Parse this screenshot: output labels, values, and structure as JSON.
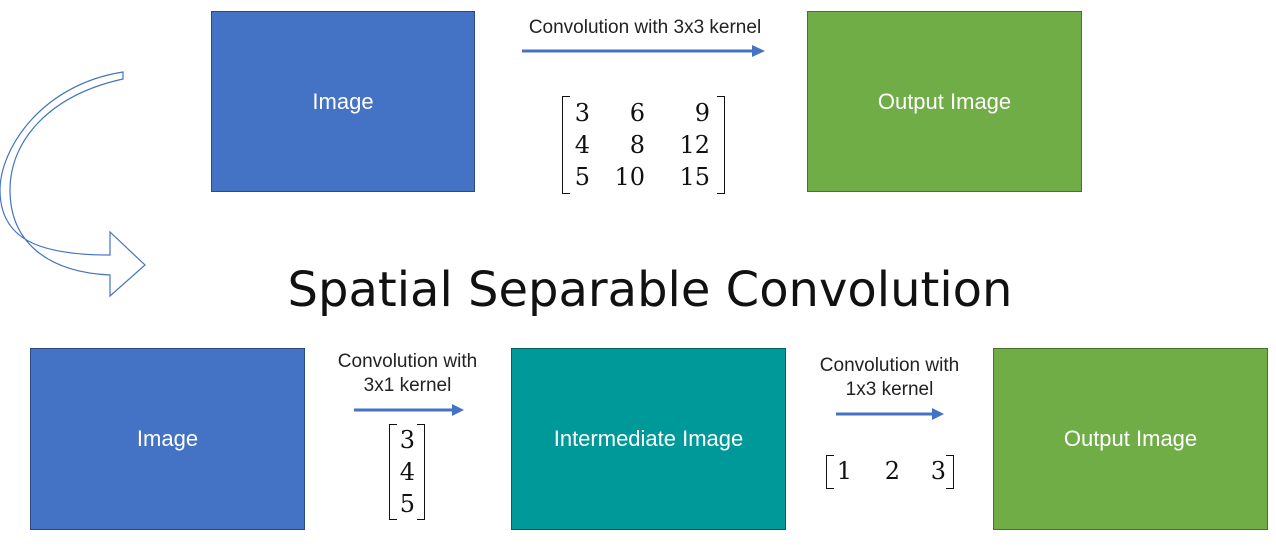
{
  "title": "Spatial Separable Convolution",
  "top": {
    "input_label": "Image",
    "op_label": "Convolution with 3x3 kernel",
    "kernel": [
      [
        "3",
        "6",
        "9"
      ],
      [
        "4",
        "8",
        "12"
      ],
      [
        "5",
        "10",
        "15"
      ]
    ],
    "output_label": "Output Image"
  },
  "bottom": {
    "input_label": "Image",
    "op1_label_line1": "Convolution with",
    "op1_label_line2": "3x1 kernel",
    "kernel_col": [
      "3",
      "4",
      "5"
    ],
    "intermediate_label": "Intermediate Image",
    "op2_label_line1": "Convolution with",
    "op2_label_line2": "1x3 kernel",
    "kernel_row": [
      "1",
      "2",
      "3"
    ],
    "output_label": "Output Image"
  },
  "colors": {
    "image": "#4472C4",
    "intermediate": "#009999",
    "output": "#70AD47",
    "arrow": "#4472C4",
    "curved_arrow": "#4472C4"
  }
}
